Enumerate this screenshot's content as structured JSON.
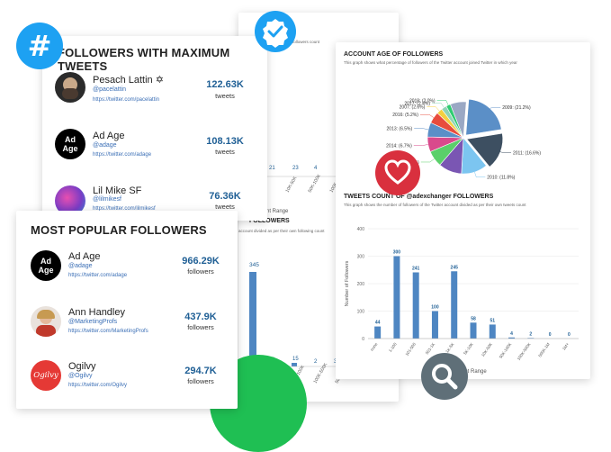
{
  "back_card": {
    "top_desc": "followers count",
    "bar_values": [
      "21",
      "23",
      "4"
    ],
    "tick_labels": [
      "10K-50K",
      "50K-100K",
      "100K-500K"
    ],
    "xlabel": "Count Range",
    "section_title": "FOLLOWERS",
    "section_desc": "account divided as per their own following count",
    "mid_bar_value": "345",
    "bottom_values": [
      "8",
      "15",
      "2",
      "3"
    ],
    "bottom_ticks": [
      "5K-10K",
      "10K-50K",
      "50K-100K",
      "100K-500K",
      "500K-1M"
    ],
    "bottom_xlabel": "Count Range"
  },
  "max_tweets": {
    "title": "FOLLOWERS WITH MAXIMUM TWEETS",
    "users": [
      {
        "name": "Pesach Lattin ✡",
        "handle": "@pacelattin",
        "link": "https://twitter.com/pacelattin",
        "value": "122.63K",
        "unit": "tweets"
      },
      {
        "name": "Ad Age",
        "handle": "@adage",
        "link": "https://twitter.com/adage",
        "value": "108.13K",
        "unit": "tweets"
      },
      {
        "name": "Lil Mike SF",
        "handle": "@lilmikesf",
        "link": "https://twitter.com/lilmikesf",
        "value": "76.36K",
        "unit": "tweets"
      }
    ]
  },
  "popular": {
    "title": "MOST POPULAR FOLLOWERS",
    "users": [
      {
        "name": "Ad Age",
        "handle": "@adage",
        "link": "https://twitter.com/adage",
        "value": "966.29K",
        "unit": "followers"
      },
      {
        "name": "Ann Handley",
        "handle": "@MarketingProfs",
        "link": "https://twitter.com/MarketingProfs",
        "value": "437.9K",
        "unit": "followers"
      },
      {
        "name": "Ogilvy",
        "handle": "@Ogilvy",
        "link": "https://twitter.com/Ogilvy",
        "value": "294.7K",
        "unit": "followers"
      }
    ],
    "logo_adage": "Ad Age",
    "logo_ogilvy": "Ogilvy"
  },
  "account_age": {
    "title": "ACCOUNT AGE OF FOLLOWERS",
    "desc": "This graph shows what percentage of followers of the Twitter account joined Twitter in which year"
  },
  "tweets_count": {
    "title": "TWEETS COUNT OF @adexchanger FOLLOWERS",
    "desc": "This graph shows the number of followers of the Twitter account divided as per their own tweets count",
    "ylabel": "Number of Followers",
    "xlabel": "Count Range"
  },
  "colors": {
    "twitter": "#1da1f2",
    "heart": "#d9303e",
    "green": "#1fbf53",
    "search": "#5f6f78",
    "bar": "#4e86c2"
  },
  "chart_data": [
    {
      "type": "pie",
      "title": "ACCOUNT AGE OF FOLLOWERS",
      "categories": [
        "2009",
        "2011",
        "2010",
        "2012",
        "2015",
        "2014",
        "2013",
        "2016",
        "2007",
        "2017",
        "2018",
        "2008"
      ],
      "labels": [
        "2009: (21.2%)",
        "2011: (16.6%)",
        "2010: (11.8%)",
        "",
        "2015: (7.3%)",
        "2014: (6.7%)",
        "2013: (6.5%)",
        "2016: (5.2%)",
        "2007: (2.6%)",
        "2017: (2.4%)",
        "2018: (2.0%)",
        ""
      ],
      "values": [
        21.2,
        16.6,
        11.8,
        10.5,
        7.3,
        6.7,
        6.5,
        5.2,
        2.6,
        2.4,
        2.0,
        7.2
      ],
      "colors": [
        "#5b8fc7",
        "#3d4f61",
        "#7cc5f0",
        "#7a56b3",
        "#5ad06a",
        "#d94a8c",
        "#5b8fc7",
        "#e84c3d",
        "#f4d03f",
        "#8fd4b5",
        "#2ecc71",
        "#9aa8c4"
      ]
    },
    {
      "type": "bar",
      "title": "TWEETS COUNT OF @adexchanger FOLLOWERS",
      "ylabel": "Number of Followers",
      "xlabel": "Count Range",
      "ylim": [
        0,
        400
      ],
      "yticks": [
        0,
        100,
        200,
        300,
        400
      ],
      "categories": [
        "none",
        "1-100",
        "101-500",
        "501-1K",
        "1K-5K",
        "5K-10K",
        "10K-50K",
        "50K-100K",
        "100K-500K",
        "500K-1M",
        "1M+"
      ],
      "values": [
        44,
        300,
        241,
        100,
        245,
        58,
        51,
        4,
        2,
        0,
        0
      ]
    }
  ]
}
